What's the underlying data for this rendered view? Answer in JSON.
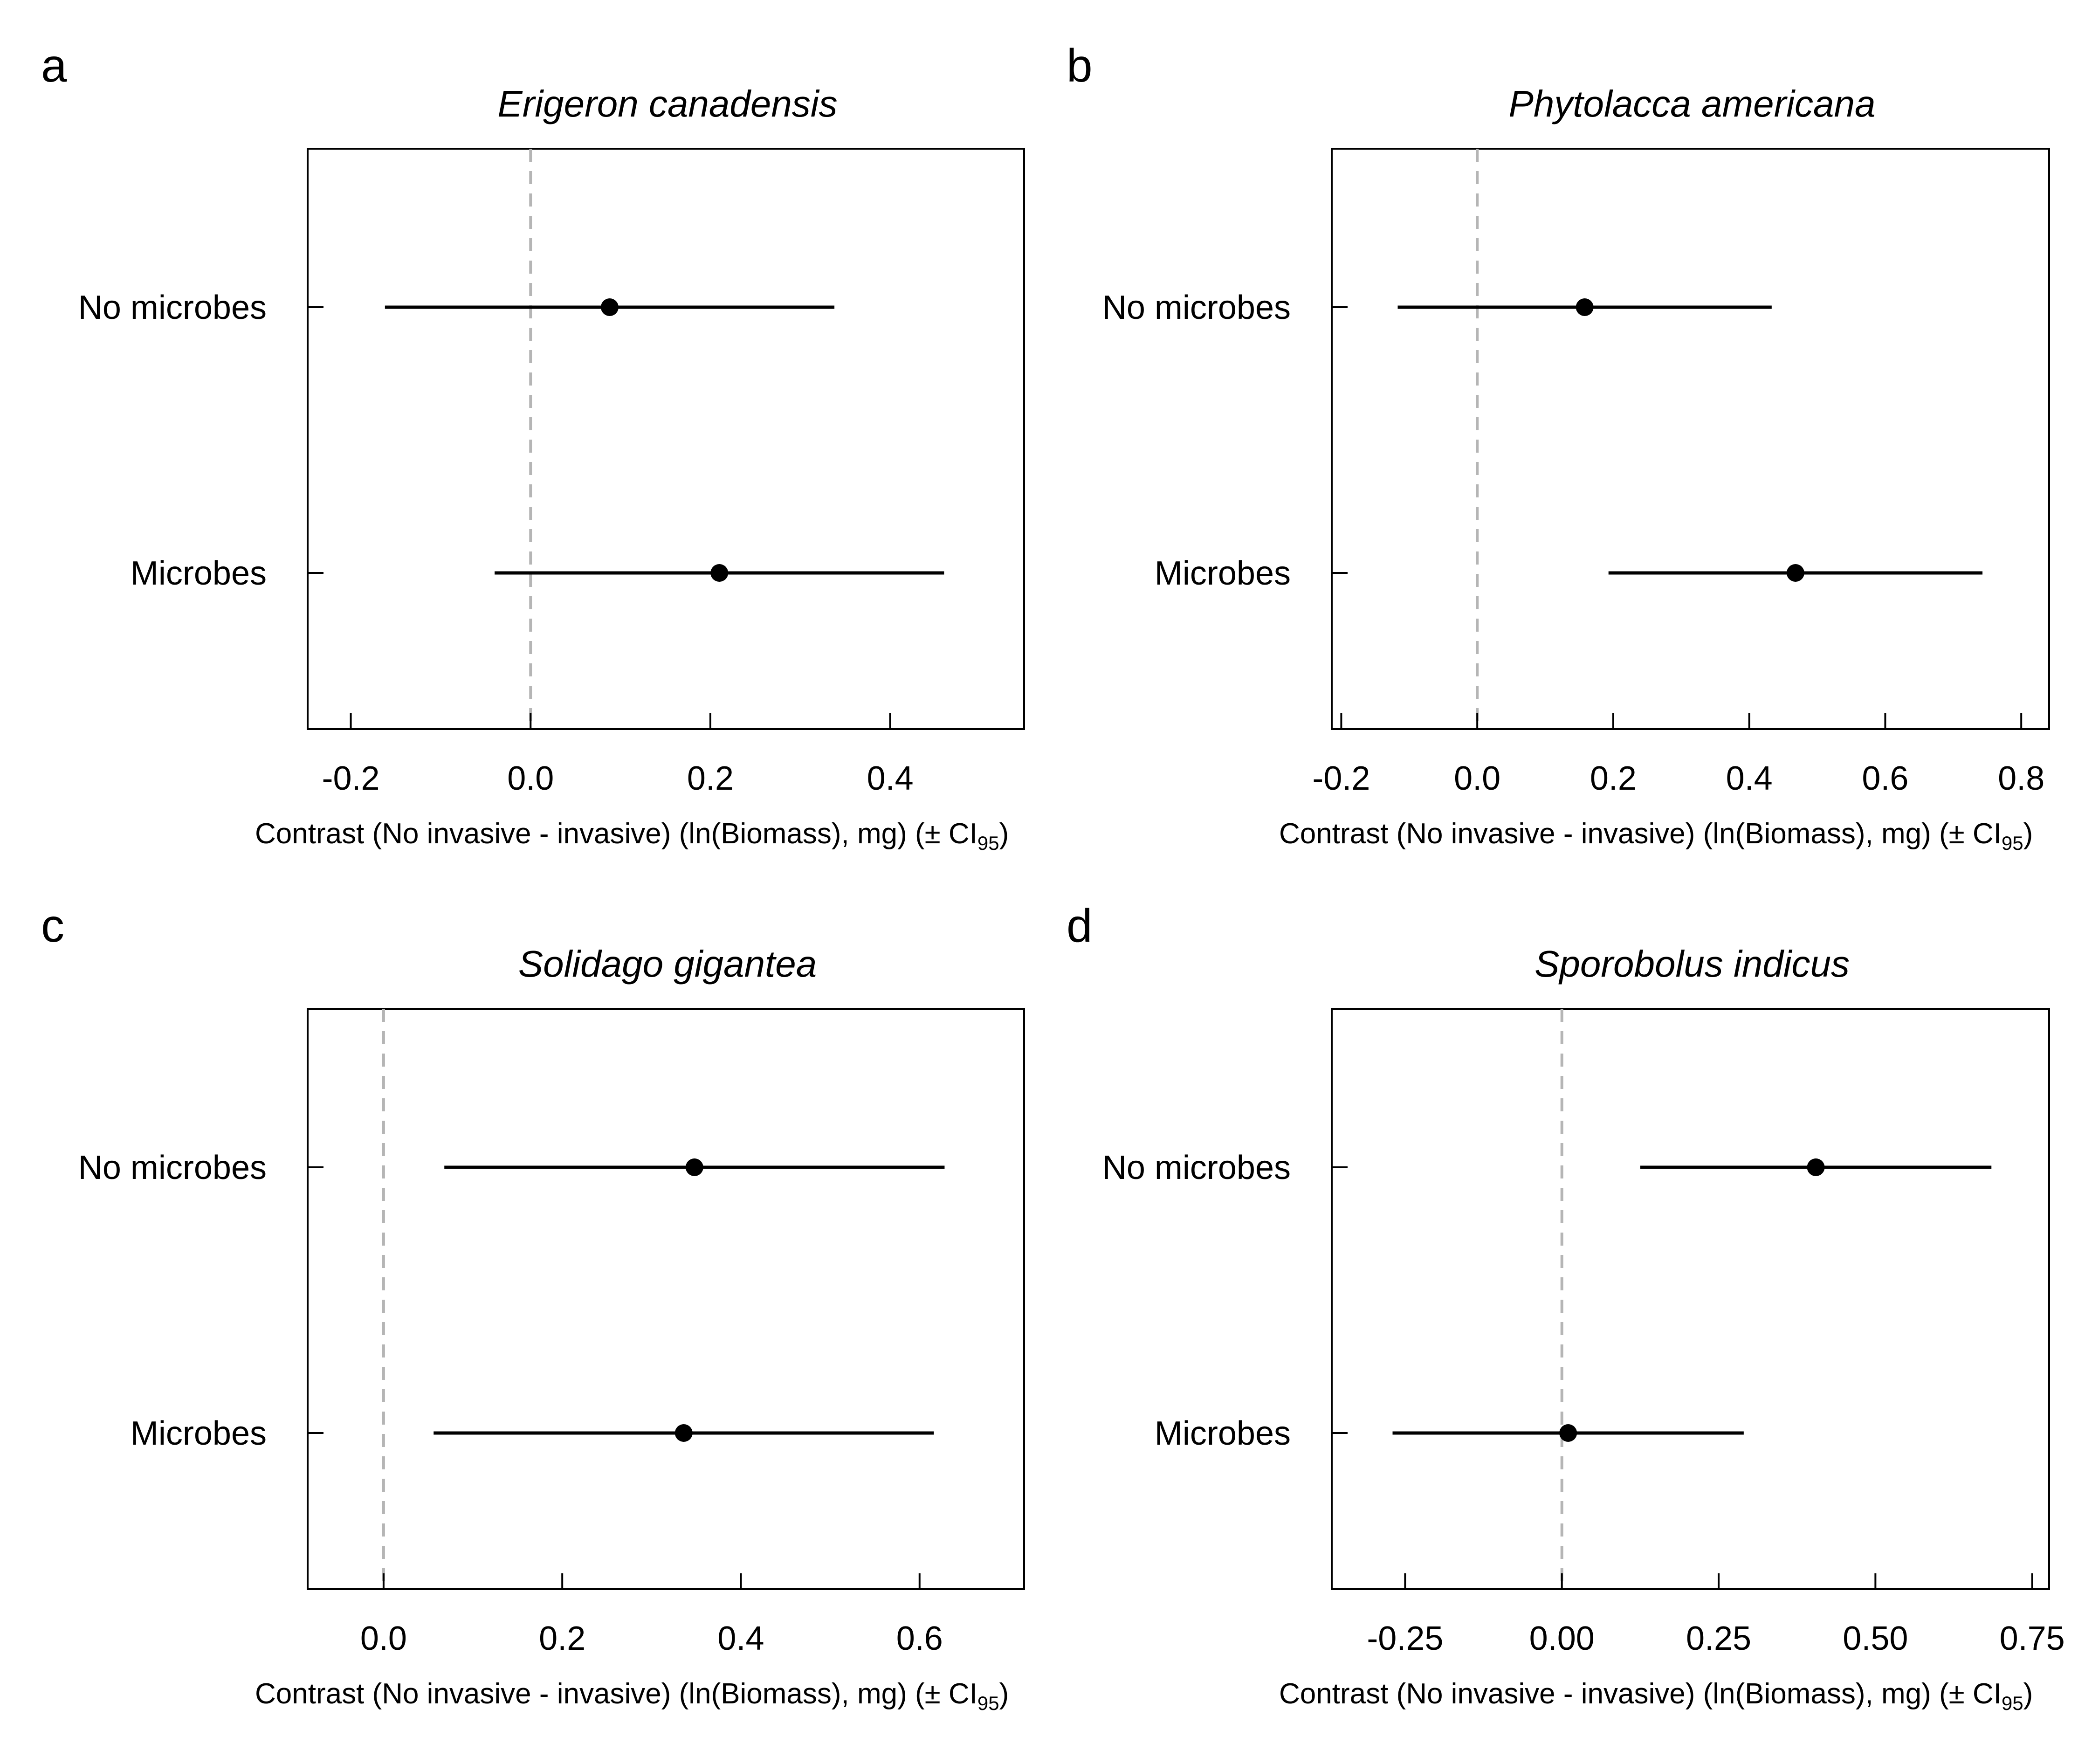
{
  "chart_data": [
    {
      "type": "forest",
      "panel_letter": "a",
      "title": "Erigeron canadensis",
      "xlabel": "Contrast (No invasive - invasive) (ln(Biomass), mg) (±  CI",
      "xlabel_subscript": "95",
      "xlabel_suffix": ")",
      "categories": [
        "No microbes",
        "Microbes"
      ],
      "estimates": [
        0.088,
        0.21
      ],
      "ci_low": [
        -0.162,
        -0.04
      ],
      "ci_high": [
        0.338,
        0.46
      ],
      "xlim": [
        -0.248,
        0.549
      ],
      "xticks": [
        -0.2,
        0.0,
        0.2,
        0.4
      ],
      "xtick_labels": [
        "-0.2",
        "0.0",
        "0.2",
        "0.4"
      ],
      "reference_line": 0
    },
    {
      "type": "forest",
      "panel_letter": "b",
      "title": "Phytolacca americana",
      "xlabel": "Contrast (No invasive - invasive) (ln(Biomass), mg) (±  CI",
      "xlabel_subscript": "95",
      "xlabel_suffix": ")",
      "categories": [
        "No microbes",
        "Microbes"
      ],
      "estimates": [
        0.158,
        0.468
      ],
      "ci_low": [
        -0.117,
        0.193
      ],
      "ci_high": [
        0.433,
        0.743
      ],
      "xlim": [
        -0.214,
        0.841
      ],
      "xticks": [
        -0.2,
        0.0,
        0.2,
        0.4,
        0.6,
        0.8
      ],
      "xtick_labels": [
        "-0.2",
        "0.0",
        "0.2",
        "0.4",
        "0.6",
        "0.8"
      ],
      "reference_line": 0
    },
    {
      "type": "forest",
      "panel_letter": "c",
      "title": "Solidago gigantea",
      "xlabel": "Contrast (No invasive - invasive) (ln(Biomass), mg) (±  CI",
      "xlabel_subscript": "95",
      "xlabel_suffix": ")",
      "categories": [
        "No microbes",
        "Microbes"
      ],
      "estimates": [
        0.348,
        0.336
      ],
      "ci_low": [
        0.068,
        0.056
      ],
      "ci_high": [
        0.628,
        0.616
      ],
      "xlim": [
        -0.085,
        0.717
      ],
      "xticks": [
        0.0,
        0.2,
        0.4,
        0.6
      ],
      "xtick_labels": [
        "0.0",
        "0.2",
        "0.4",
        "0.6"
      ],
      "reference_line": 0
    },
    {
      "type": "forest",
      "panel_letter": "d",
      "title": "Sporobolus indicus",
      "xlabel": "Contrast (No invasive - invasive) (ln(Biomass), mg) (±  CI",
      "xlabel_subscript": "95",
      "xlabel_suffix": ")",
      "categories": [
        "No microbes",
        "Microbes"
      ],
      "estimates": [
        0.405,
        0.01
      ],
      "ci_low": [
        0.125,
        -0.27
      ],
      "ci_high": [
        0.685,
        0.29
      ],
      "xlim": [
        -0.367,
        0.777
      ],
      "xticks": [
        -0.25,
        0.0,
        0.25,
        0.5,
        0.75
      ],
      "xtick_labels": [
        "-0.25",
        "0.00",
        "0.25",
        "0.50",
        "0.75"
      ],
      "reference_line": 0
    }
  ]
}
